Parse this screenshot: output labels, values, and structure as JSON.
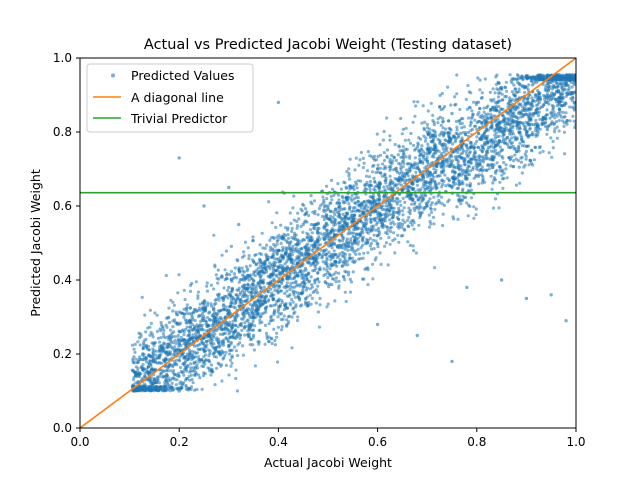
{
  "chart_data": {
    "type": "scatter",
    "title": "Actual vs Predicted Jacobi Weight (Testing dataset)",
    "xlabel": "Actual Jacobi Weight",
    "ylabel": "Predicted Jacobi Weight",
    "xlim": [
      0.0,
      1.0
    ],
    "ylim": [
      0.0,
      1.0
    ],
    "xticks": [
      "0.0",
      "0.2",
      "0.4",
      "0.6",
      "0.8",
      "1.0"
    ],
    "yticks": [
      "0.0",
      "0.2",
      "0.4",
      "0.6",
      "0.8",
      "1.0"
    ],
    "grid": false,
    "legend_position": "upper-left",
    "colors": {
      "scatter": "#1f77b4",
      "diagonal": "#ff7f0e",
      "trivial": "#2ca02c"
    },
    "series": [
      {
        "name": "Predicted Values",
        "kind": "scatter",
        "note": "dense cloud of test-set points along y≈x, predictions clipped at about 0.1 (min) and 0.95 (max)",
        "points": [
          [
            0.11,
            0.1
          ],
          [
            0.15,
            0.13
          ],
          [
            0.2,
            0.1
          ],
          [
            0.2,
            0.28
          ],
          [
            0.25,
            0.18
          ],
          [
            0.3,
            0.38
          ],
          [
            0.3,
            0.22
          ],
          [
            0.35,
            0.45
          ],
          [
            0.35,
            0.25
          ],
          [
            0.4,
            0.48
          ],
          [
            0.4,
            0.32
          ],
          [
            0.45,
            0.55
          ],
          [
            0.45,
            0.38
          ],
          [
            0.5,
            0.6
          ],
          [
            0.5,
            0.42
          ],
          [
            0.55,
            0.65
          ],
          [
            0.55,
            0.45
          ],
          [
            0.6,
            0.7
          ],
          [
            0.6,
            0.52
          ],
          [
            0.65,
            0.75
          ],
          [
            0.65,
            0.55
          ],
          [
            0.7,
            0.8
          ],
          [
            0.7,
            0.6
          ],
          [
            0.75,
            0.85
          ],
          [
            0.75,
            0.65
          ],
          [
            0.8,
            0.88
          ],
          [
            0.8,
            0.7
          ],
          [
            0.85,
            0.92
          ],
          [
            0.85,
            0.75
          ],
          [
            0.9,
            0.95
          ],
          [
            0.9,
            0.8
          ],
          [
            0.95,
            0.95
          ],
          [
            0.95,
            0.85
          ],
          [
            1.0,
            0.95
          ],
          [
            1.0,
            0.82
          ],
          [
            0.2,
            0.73
          ],
          [
            0.25,
            0.6
          ],
          [
            0.3,
            0.65
          ],
          [
            0.4,
            0.88
          ],
          [
            0.6,
            0.28
          ],
          [
            0.75,
            0.18
          ],
          [
            0.85,
            0.4
          ],
          [
            0.9,
            0.35
          ],
          [
            0.95,
            0.36
          ],
          [
            0.68,
            0.25
          ],
          [
            0.78,
            0.38
          ],
          [
            0.32,
            0.55
          ],
          [
            0.98,
            0.29
          ]
        ]
      },
      {
        "name": "A diagonal line",
        "kind": "line",
        "x": [
          0.0,
          1.0
        ],
        "y": [
          0.0,
          1.0
        ]
      },
      {
        "name": "Trivial Predictor",
        "kind": "hline",
        "x": [
          0.0,
          1.0
        ],
        "y": [
          0.636,
          0.636
        ]
      }
    ]
  }
}
